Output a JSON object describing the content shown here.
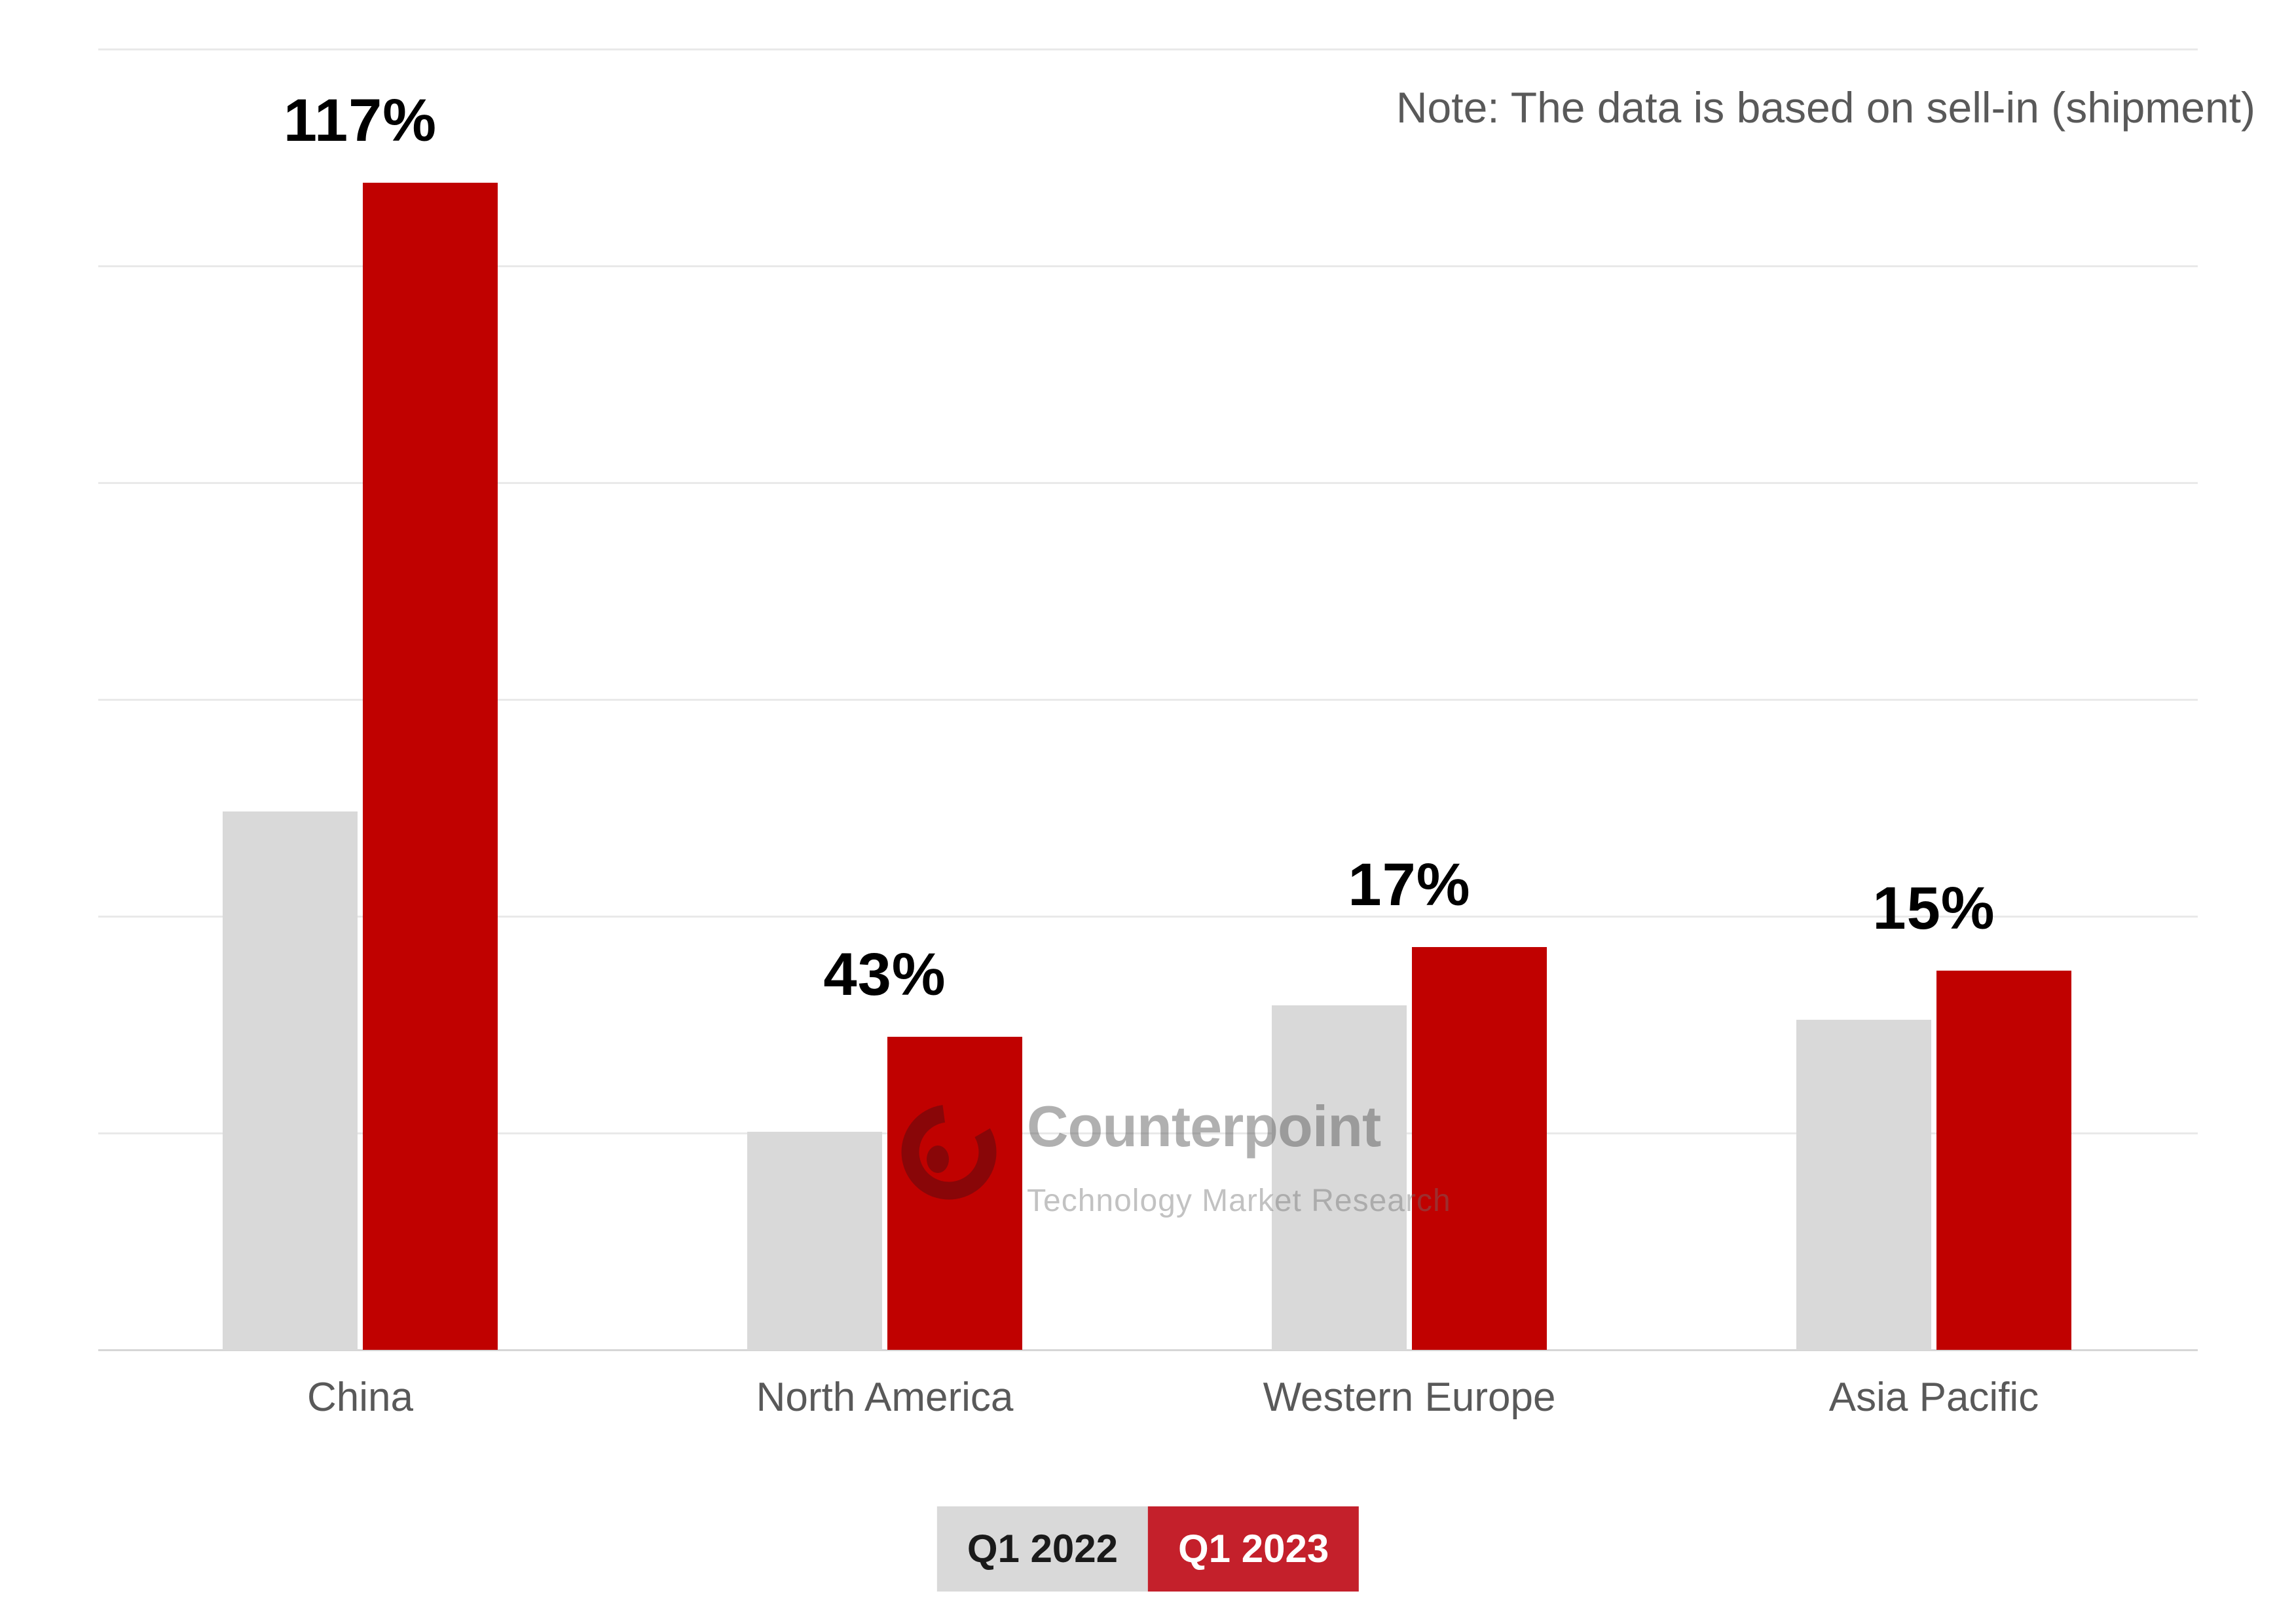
{
  "note": {
    "text": "Note: The data is based on sell-in (shipment)"
  },
  "chart_data": {
    "type": "bar",
    "title": "",
    "categories": [
      "China",
      "North America",
      "Western Europe",
      "Asia Pacific"
    ],
    "series": [
      {
        "name": "Q1 2022",
        "color": "#D9D9D9",
        "values": [
          46.1,
          18.7,
          29.5,
          28.3
        ]
      },
      {
        "name": "Q1 2023",
        "color": "#C00100",
        "values": [
          100,
          26.8,
          34.5,
          32.5
        ]
      }
    ],
    "growth_labels": [
      "117%",
      "43%",
      "17%",
      "15%"
    ],
    "value_axis": {
      "visible": false,
      "ylim": [
        0,
        111.5
      ],
      "units": "relative shipment volume (estimated, China Q1 2023 = 100)",
      "gridlines": 7,
      "grid_on": true
    },
    "category_axis": {
      "visible": true
    },
    "legend_position": "bottom-center"
  },
  "legend": {
    "items": [
      {
        "label": "Q1 2022",
        "bg": "#D9D9D9",
        "fg": "#1A1A1A"
      },
      {
        "label": "Q1 2023",
        "bg": "#C4202B",
        "fg": "#FFFFFF"
      }
    ]
  },
  "watermark": {
    "title": "Counterpoint",
    "subtitle": "Technology Market Research",
    "logo": "counterpoint-c-logo"
  },
  "colors": {
    "background": "#FFFFFF",
    "gridline": "#E9E9E9",
    "baseline": "#D6D6D6",
    "axis_label": "#595959",
    "note_text": "#595959",
    "growth_label": "#000000",
    "bar_2022": "#D9D9D9",
    "bar_2023": "#C00100",
    "logo_red": "#7A080A"
  }
}
